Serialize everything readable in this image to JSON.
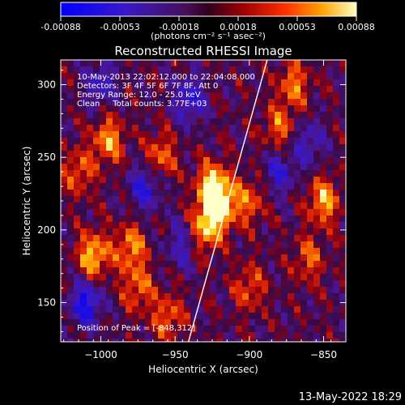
{
  "chart_data": {
    "type": "heatmap",
    "title": "Reconstructed RHESSI Image",
    "xlabel": "Heliocentric X (arcsec)",
    "ylabel": "Heliocentric Y (arcsec)",
    "xlim": [
      -1027,
      -835
    ],
    "ylim": [
      123,
      317
    ],
    "xticks": [
      -1000,
      -950,
      -900,
      -850
    ],
    "yticks": [
      150,
      200,
      250,
      300
    ],
    "colorbar": {
      "ticks": [
        "-0.00088",
        "-0.00053",
        "-0.00018",
        "0.00018",
        "0.00053",
        "0.00088"
      ],
      "vmin": -0.00088,
      "vmax": 0.00088,
      "units": "(photons cm⁻² s⁻¹ asec⁻²)"
    },
    "annotations": [
      "10-May-2013 22:02:12.000 to 22:04:08.000",
      "Detectors: 3F 4F 5F 6F 7F 8F, Att 0",
      "Energy Range: 12.0 - 25.0 keV",
      "Clean     Total counts: 3.77E+03"
    ],
    "peak_label": "Position of Peak = [-848,312]",
    "peak": {
      "x": -848,
      "y": 312
    },
    "limb_line": [
      {
        "x": -941,
        "y": 123
      },
      {
        "x": -888,
        "y": 317
      }
    ],
    "hotspots": [
      {
        "x": -920,
        "y": 217,
        "v": 0.00088
      },
      {
        "x": -925,
        "y": 230,
        "v": 0.0008
      },
      {
        "x": -930,
        "y": 200,
        "v": 0.0007
      },
      {
        "x": -1005,
        "y": 182,
        "v": 0.00078
      },
      {
        "x": -980,
        "y": 188,
        "v": 0.0006
      },
      {
        "x": -995,
        "y": 262,
        "v": 0.00065
      },
      {
        "x": -960,
        "y": 250,
        "v": 0.00055
      },
      {
        "x": -850,
        "y": 220,
        "v": 0.00068
      },
      {
        "x": -880,
        "y": 270,
        "v": 0.0005
      },
      {
        "x": -870,
        "y": 300,
        "v": 0.00055
      },
      {
        "x": -975,
        "y": 160,
        "v": 0.0005
      },
      {
        "x": -900,
        "y": 160,
        "v": 0.00045
      },
      {
        "x": -955,
        "y": 140,
        "v": 0.0005
      },
      {
        "x": -1015,
        "y": 240,
        "v": 0.00048
      },
      {
        "x": -900,
        "y": 220,
        "v": 0.0005
      },
      {
        "x": -860,
        "y": 180,
        "v": 0.00045
      }
    ],
    "coldspots": [
      {
        "x": -1010,
        "y": 150,
        "v": -0.00075
      },
      {
        "x": -970,
        "y": 230,
        "v": -0.0006
      },
      {
        "x": -940,
        "y": 290,
        "v": -0.0006
      },
      {
        "x": -880,
        "y": 240,
        "v": -0.0005
      },
      {
        "x": -1000,
        "y": 300,
        "v": -0.0005
      },
      {
        "x": -860,
        "y": 260,
        "v": -0.00045
      },
      {
        "x": -945,
        "y": 190,
        "v": -0.00045
      }
    ]
  },
  "footer": {
    "date": "13-May-2022 18:29"
  }
}
